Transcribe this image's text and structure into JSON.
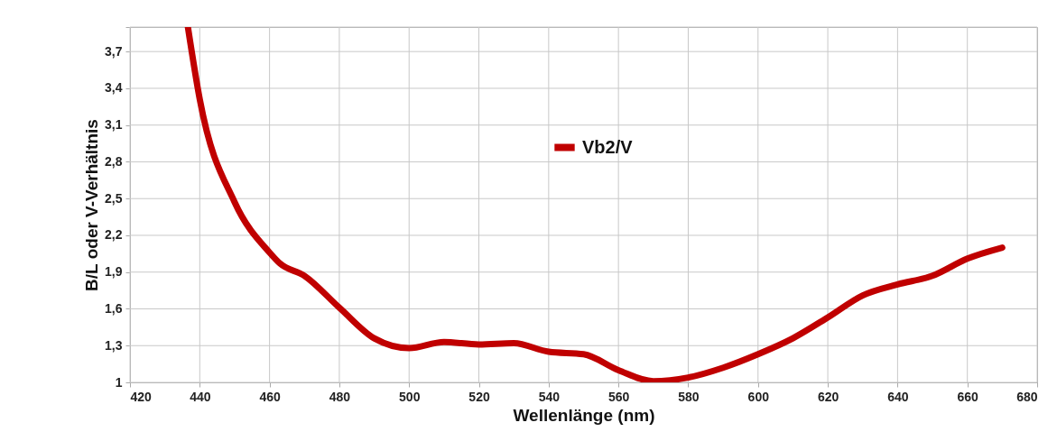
{
  "chart_data": {
    "type": "line",
    "xlabel": "Wellenlänge (nm)",
    "ylabel": "B/L oder V-Verhältnis",
    "x": [
      436.6,
      440,
      450,
      460,
      463,
      470,
      480,
      490,
      500,
      510,
      520,
      530,
      540,
      550,
      560,
      570,
      580,
      590,
      600,
      610,
      620,
      630,
      640,
      650,
      660,
      670
    ],
    "series": [
      {
        "name": "Vb2/V",
        "color": "#c00000",
        "values": [
          3.9,
          3.31,
          2.47,
          2.06,
          1.97,
          1.87,
          1.61,
          1.36,
          1.28,
          1.33,
          1.31,
          1.32,
          1.25,
          1.23,
          1.1,
          1.01,
          1.04,
          1.12,
          1.23,
          1.36,
          1.53,
          1.71,
          1.8,
          1.87,
          2.01,
          2.1
        ]
      }
    ],
    "xlim": [
      420,
      680
    ],
    "xticks": [
      420,
      440,
      460,
      480,
      500,
      520,
      540,
      560,
      580,
      600,
      620,
      640,
      660,
      680
    ],
    "ylim": [
      1,
      3.9
    ],
    "yticks": [
      1,
      {
        "value": 1.3,
        "label": "1,3"
      },
      {
        "value": 1.6,
        "label": "1,6"
      },
      {
        "value": 1.9,
        "label": "1,9"
      },
      {
        "value": 2.2,
        "label": "2,2"
      },
      {
        "value": 2.5,
        "label": "2,5"
      },
      {
        "value": 2.8,
        "label": "2,8"
      },
      {
        "value": 3.1,
        "label": "3,1"
      },
      {
        "value": 3.4,
        "label": "3,4"
      },
      {
        "value": 3.7,
        "label": "3,7"
      },
      {
        "value": 3.9,
        "label": null
      }
    ],
    "grid": true,
    "legend": "top",
    "marker": "none",
    "line_style": "solid"
  }
}
